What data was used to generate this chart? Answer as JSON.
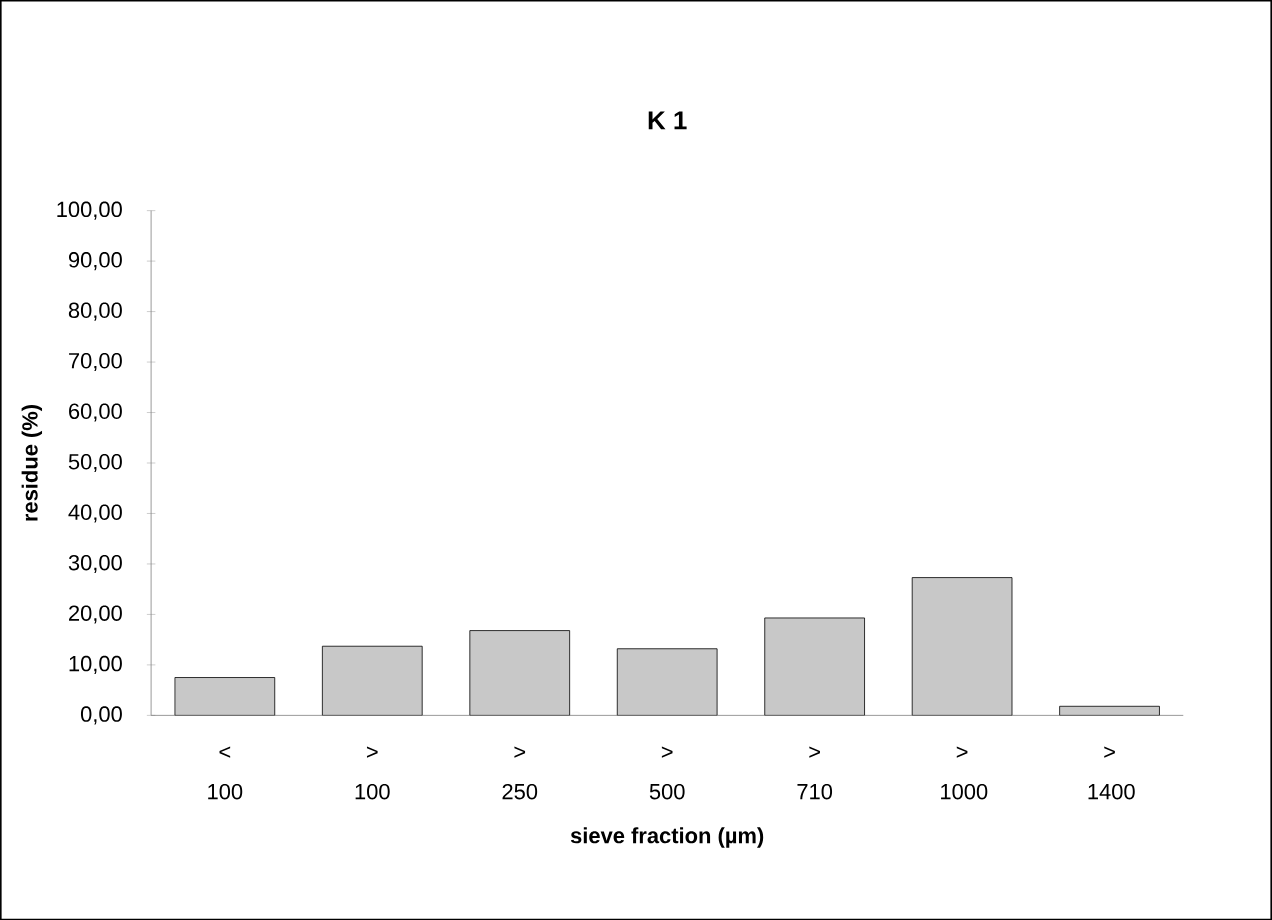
{
  "chart_data": {
    "type": "bar",
    "title": "K 1",
    "xlabel": "sieve fraction (µm)",
    "ylabel": "residue (%)",
    "categories": [
      "< 100",
      "> 100",
      "> 250",
      "> 500",
      "> 710",
      "> 1000",
      "> 1400"
    ],
    "values": [
      7.5,
      13.7,
      16.8,
      13.2,
      19.3,
      27.3,
      1.8
    ],
    "color": "#c8c8c8",
    "ylim": [
      0,
      100
    ],
    "yticks": [
      {
        "value": 0,
        "label": "0,00"
      },
      {
        "value": 10,
        "label": "10,00"
      },
      {
        "value": 20,
        "label": "20,00"
      },
      {
        "value": 30,
        "label": "30,00"
      },
      {
        "value": 40,
        "label": "40,00"
      },
      {
        "value": 50,
        "label": "50,00"
      },
      {
        "value": 60,
        "label": "60,00"
      },
      {
        "value": 70,
        "label": "70,00"
      },
      {
        "value": 80,
        "label": "80,00"
      },
      {
        "value": 90,
        "label": "90,00"
      },
      {
        "value": 100,
        "label": "100,00"
      }
    ],
    "grid": false
  }
}
